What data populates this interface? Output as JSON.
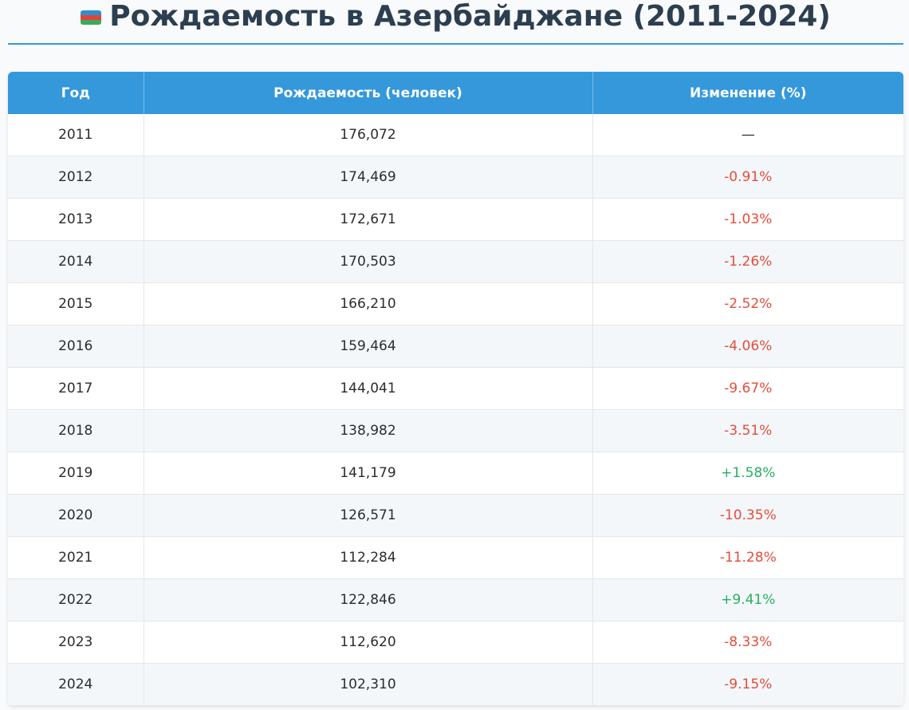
{
  "header": {
    "title": "Рождаемость в Азербайджане (2011-2024)",
    "flag_icon": "azerbaijan-flag-icon"
  },
  "table": {
    "columns": [
      "Год",
      "Рождаемость (человек)",
      "Изменение (%)"
    ],
    "rows": [
      {
        "year": "2011",
        "births": "176,072",
        "change": "—",
        "trend": "neutral"
      },
      {
        "year": "2012",
        "births": "174,469",
        "change": "-0.91%",
        "trend": "negative"
      },
      {
        "year": "2013",
        "births": "172,671",
        "change": "-1.03%",
        "trend": "negative"
      },
      {
        "year": "2014",
        "births": "170,503",
        "change": "-1.26%",
        "trend": "negative"
      },
      {
        "year": "2015",
        "births": "166,210",
        "change": "-2.52%",
        "trend": "negative"
      },
      {
        "year": "2016",
        "births": "159,464",
        "change": "-4.06%",
        "trend": "negative"
      },
      {
        "year": "2017",
        "births": "144,041",
        "change": "-9.67%",
        "trend": "negative"
      },
      {
        "year": "2018",
        "births": "138,982",
        "change": "-3.51%",
        "trend": "negative"
      },
      {
        "year": "2019",
        "births": "141,179",
        "change": "+1.58%",
        "trend": "positive"
      },
      {
        "year": "2020",
        "births": "126,571",
        "change": "-10.35%",
        "trend": "negative"
      },
      {
        "year": "2021",
        "births": "112,284",
        "change": "-11.28%",
        "trend": "negative"
      },
      {
        "year": "2022",
        "births": "122,846",
        "change": "+9.41%",
        "trend": "positive"
      },
      {
        "year": "2023",
        "births": "112,620",
        "change": "-8.33%",
        "trend": "negative"
      },
      {
        "year": "2024",
        "births": "102,310",
        "change": "-9.15%",
        "trend": "negative"
      }
    ]
  },
  "colors": {
    "accent": "#3498db",
    "title": "#2c3e50",
    "negative": "#e74c3c",
    "positive": "#27ae60",
    "stripe": "#f3f7fa"
  }
}
